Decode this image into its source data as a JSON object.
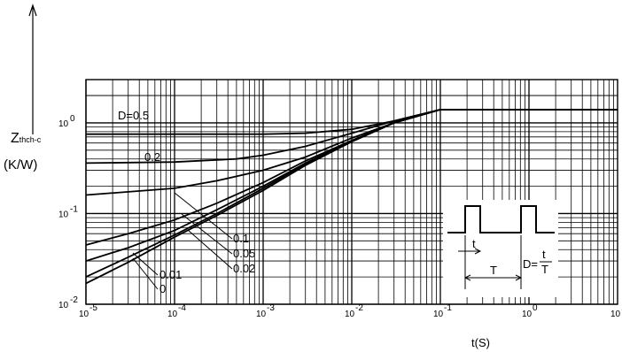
{
  "chart_data": {
    "type": "line",
    "title": "",
    "xlabel": "t(S)",
    "ylabel": "Zthch-c (K/W)",
    "ylabel_symbol": "Z",
    "ylabel_subscript": "thch-c",
    "ylabel_unit": "(K/W)",
    "xscale": "log",
    "yscale": "log",
    "xlim": [
      1e-05,
      10
    ],
    "ylim": [
      0.01,
      3
    ],
    "grid": true,
    "x_tick_labels": [
      "10",
      "10",
      "10",
      "10",
      "10",
      "10",
      "10"
    ],
    "x_tick_exponents": [
      "-5",
      "-4",
      "-3",
      "-2",
      "-1",
      "0",
      "1"
    ],
    "x_tick_values": [
      1e-05,
      0.0001,
      0.001,
      0.01,
      0.1,
      1,
      10
    ],
    "y_tick_labels": [
      "10",
      "10",
      "10"
    ],
    "y_tick_exponents": [
      "-2",
      "-1",
      "0"
    ],
    "y_tick_values": [
      0.01,
      0.1,
      1
    ],
    "series": [
      {
        "name": "D=0.5",
        "x": [
          1e-05,
          0.0001,
          0.001,
          0.003,
          0.01,
          0.03,
          0.1,
          10
        ],
        "y": [
          0.75,
          0.75,
          0.75,
          0.77,
          0.85,
          1.05,
          1.4,
          1.4
        ]
      },
      {
        "name": "0.2",
        "x": [
          1e-05,
          0.0001,
          0.0005,
          0.001,
          0.003,
          0.01,
          0.03,
          0.1,
          10
        ],
        "y": [
          0.36,
          0.37,
          0.4,
          0.44,
          0.55,
          0.77,
          1.05,
          1.4,
          1.4
        ]
      },
      {
        "name": "0.1",
        "x": [
          1e-05,
          0.0001,
          0.0003,
          0.001,
          0.003,
          0.01,
          0.03,
          0.1,
          10
        ],
        "y": [
          0.16,
          0.19,
          0.23,
          0.3,
          0.42,
          0.68,
          1.0,
          1.4,
          1.4
        ]
      },
      {
        "name": "0.05",
        "x": [
          1e-05,
          3e-05,
          0.0001,
          0.0003,
          0.001,
          0.003,
          0.01,
          0.03,
          0.1,
          10
        ],
        "y": [
          0.045,
          0.06,
          0.085,
          0.13,
          0.22,
          0.38,
          0.64,
          1.0,
          1.4,
          1.4
        ]
      },
      {
        "name": "0.02",
        "x": [
          1e-05,
          3e-05,
          0.0001,
          0.0003,
          0.001,
          0.003,
          0.01,
          0.03,
          0.1,
          10
        ],
        "y": [
          0.03,
          0.042,
          0.065,
          0.11,
          0.2,
          0.36,
          0.63,
          1.0,
          1.4,
          1.4
        ]
      },
      {
        "name": "0.01",
        "x": [
          1e-05,
          3e-05,
          0.0001,
          0.0003,
          0.001,
          0.003,
          0.01,
          0.03,
          0.1,
          10
        ],
        "y": [
          0.02,
          0.033,
          0.058,
          0.1,
          0.19,
          0.35,
          0.62,
          1.0,
          1.4,
          1.4
        ]
      },
      {
        "name": "0",
        "x": [
          1e-05,
          3e-05,
          0.0001,
          0.0003,
          0.001,
          0.003,
          0.01,
          0.03,
          0.1,
          10
        ],
        "y": [
          0.017,
          0.029,
          0.055,
          0.095,
          0.18,
          0.34,
          0.62,
          1.0,
          1.4,
          1.4
        ]
      }
    ],
    "labels": {
      "d05": "D=0.5",
      "d02": "0.2",
      "d01": "0.1",
      "d005": "0.05",
      "d002": "0.02",
      "d001": "0.01",
      "d0": "0"
    },
    "inset": {
      "t_label": "t",
      "T_label": "T",
      "formula_left": "D=",
      "formula_num": "t",
      "formula_den": "T"
    }
  }
}
